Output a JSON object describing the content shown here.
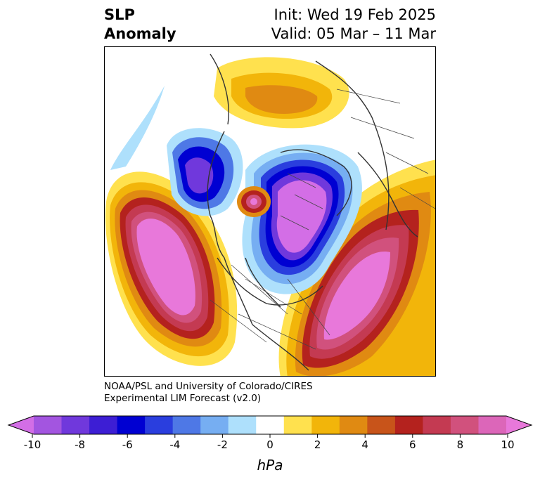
{
  "title": {
    "line1": "SLP",
    "line2": "Anomaly"
  },
  "info": {
    "init": "Init: Wed 19 Feb 2025",
    "valid": "Valid: 05 Mar – 11 Mar"
  },
  "credit": {
    "line1": "NOAA/PSL and University of Colorado/CIRES",
    "line2": "Experimental LIM Forecast (v2.0)"
  },
  "colorbar": {
    "units": "hPa",
    "colors": [
      "#d36ee6",
      "#a355e0",
      "#7038dc",
      "#3d1ed4",
      "#0000d2",
      "#2a3ede",
      "#4e78e6",
      "#76aef2",
      "#aee0fc",
      "#ffffff",
      "#ffe14e",
      "#f2b50a",
      "#e08a12",
      "#c8541a",
      "#b4221e",
      "#c43a52",
      "#d1517d",
      "#dc66b9",
      "#e878da"
    ],
    "ticks": [
      "-10",
      "-8",
      "-6",
      "-4",
      "-2",
      "0",
      "2",
      "4",
      "6",
      "8",
      "10"
    ]
  }
}
